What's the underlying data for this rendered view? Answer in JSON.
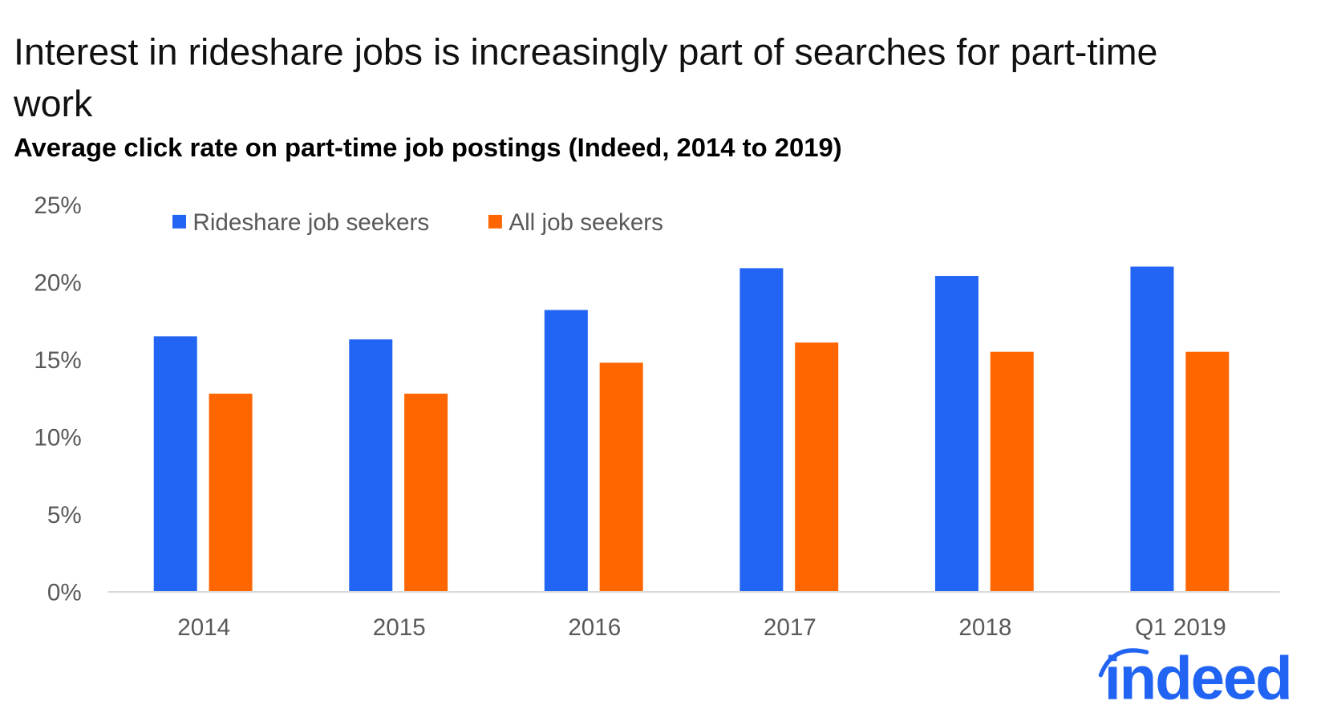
{
  "title_line1": "Interest in rideshare jobs is increasingly part of searches for part-time",
  "title_line2": "work",
  "subtitle": "Average click rate on part-time job postings (Indeed, 2014 to 2019)",
  "logo": "indeed",
  "colors": {
    "rideshare": "#2264f3",
    "all": "#ff6600",
    "axis": "#d9d9d9",
    "logo": "#2164f3"
  },
  "chart_data": {
    "type": "bar",
    "title": "Interest in rideshare jobs is increasingly part of searches for part-time work",
    "subtitle": "Average click rate on part-time job postings (Indeed, 2014 to 2019)",
    "categories": [
      "2014",
      "2015",
      "2016",
      "2017",
      "2018",
      "Q1 2019"
    ],
    "series": [
      {
        "name": "Rideshare job seekers",
        "values": [
          16.5,
          16.3,
          18.2,
          20.9,
          20.4,
          21.0
        ]
      },
      {
        "name": "All job seekers",
        "values": [
          12.8,
          12.8,
          14.8,
          16.1,
          15.5,
          15.5
        ]
      }
    ],
    "ylim": [
      0,
      25
    ],
    "yticks": [
      "0%",
      "5%",
      "10%",
      "15%",
      "20%",
      "25%"
    ],
    "ytick_values": [
      0,
      5,
      10,
      15,
      20,
      25
    ],
    "xlabel": "",
    "ylabel": "",
    "grid": false,
    "legend": "top-left"
  }
}
